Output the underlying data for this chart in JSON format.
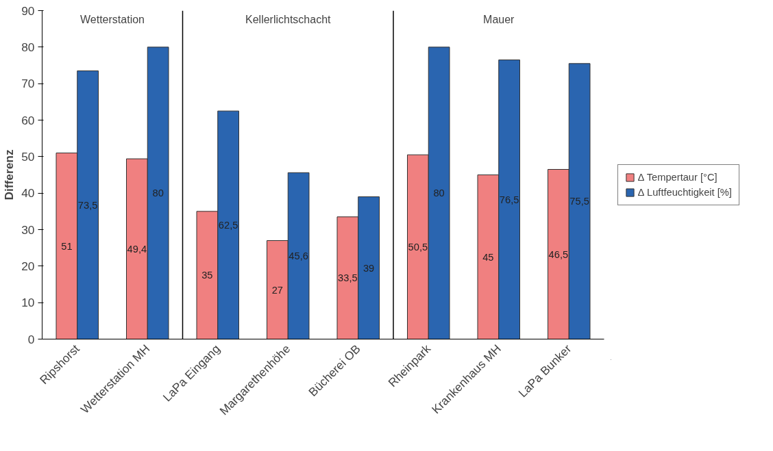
{
  "chart_data": {
    "type": "bar",
    "ylabel": "Differenz",
    "categories": [
      "Ripshorst",
      "Wetterstation MH",
      "LaPa Eingang",
      "Margarethenhöhe",
      "Bücherei OB",
      "Rheinpark",
      "Krankenhaus MH",
      "LaPa Bunker"
    ],
    "series": [
      {
        "name": "∆ Tempertaur [°C]",
        "color": "#f08080",
        "values": [
          51,
          49.4,
          35,
          27,
          33.5,
          50.5,
          45,
          46.5
        ],
        "value_labels": [
          "51",
          "49,4",
          "35",
          "27",
          "33,5",
          "50,5",
          "45",
          "46,5"
        ]
      },
      {
        "name": "∆ Luftfeuchtigkeit [%]",
        "color": "#2a65b0",
        "values": [
          73.5,
          80,
          62.5,
          45.6,
          39,
          80,
          76.5,
          75.5
        ],
        "value_labels": [
          "73,5",
          "80",
          "62,5",
          "45,6",
          "39",
          "80",
          "76,5",
          "75,5"
        ]
      }
    ],
    "ylim": [
      0,
      90
    ],
    "yticks": [
      0,
      10,
      20,
      30,
      40,
      50,
      60,
      70,
      80,
      90
    ],
    "annotations": [
      "Wetterstation",
      "Kellerlichtschacht",
      "Mauer"
    ],
    "grid": false,
    "legend": "right"
  }
}
